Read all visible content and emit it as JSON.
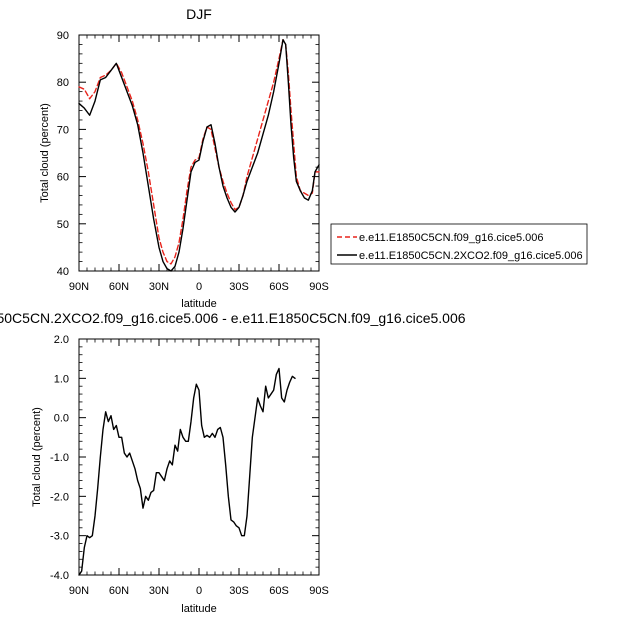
{
  "chart_data": [
    {
      "type": "line",
      "title": "DJF",
      "xlabel": "latitude",
      "ylabel": "Total cloud (percent)",
      "xlim": [
        90,
        -90
      ],
      "ylim": [
        40,
        90
      ],
      "xticks": [
        90,
        60,
        30,
        0,
        -30,
        -60,
        -90
      ],
      "xtick_labels": [
        "90N",
        "60N",
        "30N",
        "0",
        "30S",
        "60S",
        "90S"
      ],
      "yticks": [
        40,
        50,
        60,
        70,
        80,
        90
      ],
      "ytick_labels": [
        "40",
        "50",
        "60",
        "70",
        "80",
        "90"
      ],
      "legend_position": "right",
      "series": [
        {
          "name": "e.e11.E1850C5CN.f09_g16.cice5.006",
          "color": "#e8241c",
          "dash": "dashed",
          "points": [
            [
              90,
              79
            ],
            [
              86,
              78.5
            ],
            [
              82,
              76.5
            ],
            [
              78,
              78
            ],
            [
              74,
              81
            ],
            [
              70,
              81.5
            ],
            [
              66,
              82.5
            ],
            [
              62,
              84
            ],
            [
              58,
              82
            ],
            [
              54,
              79
            ],
            [
              50,
              76
            ],
            [
              46,
              72
            ],
            [
              42,
              67
            ],
            [
              38,
              61
            ],
            [
              34,
              54
            ],
            [
              30,
              47
            ],
            [
              27,
              44
            ],
            [
              24,
              42
            ],
            [
              21,
              41.5
            ],
            [
              18,
              43
            ],
            [
              15,
              46
            ],
            [
              12,
              51
            ],
            [
              9,
              57
            ],
            [
              6,
              62
            ],
            [
              3,
              63.5
            ],
            [
              0,
              64
            ],
            [
              -3,
              68
            ],
            [
              -6,
              70.5
            ],
            [
              -9,
              70
            ],
            [
              -12,
              66
            ],
            [
              -15,
              62
            ],
            [
              -18,
              59
            ],
            [
              -21,
              56.5
            ],
            [
              -24,
              54.5
            ],
            [
              -27,
              53
            ],
            [
              -30,
              53.5
            ],
            [
              -33,
              56
            ],
            [
              -36,
              60
            ],
            [
              -40,
              64
            ],
            [
              -44,
              68
            ],
            [
              -48,
              72
            ],
            [
              -52,
              76
            ],
            [
              -56,
              80
            ],
            [
              -60,
              85
            ],
            [
              -63,
              89
            ],
            [
              -65,
              88
            ],
            [
              -67,
              82
            ],
            [
              -69,
              74
            ],
            [
              -71,
              67
            ],
            [
              -73,
              60
            ],
            [
              -76,
              57
            ],
            [
              -79,
              56.5
            ],
            [
              -82,
              56
            ],
            [
              -85,
              56.5
            ],
            [
              -87,
              61
            ],
            [
              -90,
              61
            ]
          ]
        },
        {
          "name": "e.e11.E1850C5CN.2XCO2.f09_g16.cice5.006",
          "color": "#000000",
          "dash": "solid",
          "points": [
            [
              90,
              75.5
            ],
            [
              88,
              75
            ],
            [
              86,
              74.5
            ],
            [
              82,
              73
            ],
            [
              78,
              76
            ],
            [
              74,
              80.5
            ],
            [
              70,
              81
            ],
            [
              66,
              82.5
            ],
            [
              62,
              84
            ],
            [
              58,
              81
            ],
            [
              54,
              78
            ],
            [
              50,
              75
            ],
            [
              46,
              71
            ],
            [
              42,
              65
            ],
            [
              38,
              58
            ],
            [
              34,
              51
            ],
            [
              30,
              45
            ],
            [
              27,
              42
            ],
            [
              24,
              40.5
            ],
            [
              21,
              40
            ],
            [
              18,
              41
            ],
            [
              15,
              44
            ],
            [
              12,
              49
            ],
            [
              9,
              55
            ],
            [
              6,
              61
            ],
            [
              3,
              63
            ],
            [
              0,
              63.5
            ],
            [
              -3,
              67.5
            ],
            [
              -6,
              70.5
            ],
            [
              -9,
              71
            ],
            [
              -12,
              67
            ],
            [
              -15,
              62
            ],
            [
              -18,
              58
            ],
            [
              -21,
              55.5
            ],
            [
              -24,
              53.5
            ],
            [
              -27,
              52.5
            ],
            [
              -30,
              53.5
            ],
            [
              -33,
              56
            ],
            [
              -36,
              59
            ],
            [
              -40,
              62
            ],
            [
              -44,
              65
            ],
            [
              -48,
              69
            ],
            [
              -52,
              73
            ],
            [
              -56,
              78
            ],
            [
              -60,
              84
            ],
            [
              -63,
              89
            ],
            [
              -65,
              88
            ],
            [
              -67,
              80
            ],
            [
              -69,
              71
            ],
            [
              -71,
              64
            ],
            [
              -73,
              59
            ],
            [
              -76,
              57
            ],
            [
              -79,
              55.5
            ],
            [
              -82,
              55
            ],
            [
              -85,
              57
            ],
            [
              -87,
              61
            ],
            [
              -90,
              62.5
            ]
          ]
        }
      ]
    },
    {
      "type": "line",
      "title": "50C5CN.2XCO2.f09_g16.cice5.006 - e.e11.E1850C5CN.f09_g16.cice5.006",
      "xlabel": "latitude",
      "ylabel": "Total cloud (percent)",
      "xlim": [
        90,
        -90
      ],
      "ylim": [
        -4,
        2
      ],
      "xticks": [
        90,
        60,
        30,
        0,
        -30,
        -60,
        -90
      ],
      "xtick_labels": [
        "90N",
        "60N",
        "30N",
        "0",
        "30S",
        "60S",
        "90S"
      ],
      "yticks": [
        -4,
        -3,
        -2,
        -1,
        0,
        1,
        2
      ],
      "ytick_labels": [
        "-4.0",
        "-3.0",
        "-2.0",
        "-1.0",
        "0.0",
        "1.0",
        "2.0"
      ],
      "series": [
        {
          "color": "#000000",
          "dash": "solid",
          "points": [
            [
              90,
              -4
            ],
            [
              88,
              -3.9
            ],
            [
              86,
              -3.3
            ],
            [
              84,
              -3.0
            ],
            [
              82,
              -3.05
            ],
            [
              80,
              -3.0
            ],
            [
              78,
              -2.5
            ],
            [
              76,
              -1.8
            ],
            [
              74,
              -1.0
            ],
            [
              72,
              -0.3
            ],
            [
              70,
              0.15
            ],
            [
              68,
              -0.1
            ],
            [
              66,
              0.05
            ],
            [
              64,
              -0.3
            ],
            [
              62,
              -0.2
            ],
            [
              60,
              -0.5
            ],
            [
              58,
              -0.5
            ],
            [
              56,
              -0.9
            ],
            [
              54,
              -1.0
            ],
            [
              52,
              -0.9
            ],
            [
              50,
              -1.1
            ],
            [
              48,
              -1.3
            ],
            [
              46,
              -1.6
            ],
            [
              44,
              -1.8
            ],
            [
              42,
              -2.3
            ],
            [
              40,
              -2.0
            ],
            [
              38,
              -2.1
            ],
            [
              36,
              -1.9
            ],
            [
              34,
              -1.85
            ],
            [
              32,
              -1.4
            ],
            [
              30,
              -1.4
            ],
            [
              28,
              -1.5
            ],
            [
              26,
              -1.6
            ],
            [
              24,
              -1.3
            ],
            [
              22,
              -1.1
            ],
            [
              20,
              -1.2
            ],
            [
              18,
              -0.7
            ],
            [
              16,
              -0.85
            ],
            [
              14,
              -0.3
            ],
            [
              12,
              -0.5
            ],
            [
              10,
              -0.6
            ],
            [
              8,
              -0.6
            ],
            [
              6,
              -0.1
            ],
            [
              4,
              0.5
            ],
            [
              2,
              0.85
            ],
            [
              0,
              0.7
            ],
            [
              -2,
              -0.2
            ],
            [
              -4,
              -0.5
            ],
            [
              -6,
              -0.45
            ],
            [
              -8,
              -0.5
            ],
            [
              -10,
              -0.4
            ],
            [
              -12,
              -0.5
            ],
            [
              -14,
              -0.3
            ],
            [
              -16,
              -0.25
            ],
            [
              -18,
              -0.5
            ],
            [
              -20,
              -1.2
            ],
            [
              -22,
              -2.0
            ],
            [
              -24,
              -2.6
            ],
            [
              -26,
              -2.65
            ],
            [
              -28,
              -2.75
            ],
            [
              -30,
              -2.8
            ],
            [
              -32,
              -3.0
            ],
            [
              -34,
              -3.0
            ],
            [
              -36,
              -2.5
            ],
            [
              -38,
              -1.5
            ],
            [
              -40,
              -0.5
            ],
            [
              -42,
              0.0
            ],
            [
              -44,
              0.5
            ],
            [
              -46,
              0.3
            ],
            [
              -48,
              0.15
            ],
            [
              -50,
              0.8
            ],
            [
              -52,
              0.5
            ],
            [
              -54,
              0.6
            ],
            [
              -56,
              0.7
            ],
            [
              -58,
              1.1
            ],
            [
              -60,
              1.25
            ],
            [
              -62,
              0.5
            ],
            [
              -64,
              0.4
            ],
            [
              -66,
              0.7
            ],
            [
              -68,
              0.9
            ],
            [
              -70,
              1.05
            ],
            [
              -72,
              1.0
            ]
          ]
        }
      ]
    }
  ]
}
